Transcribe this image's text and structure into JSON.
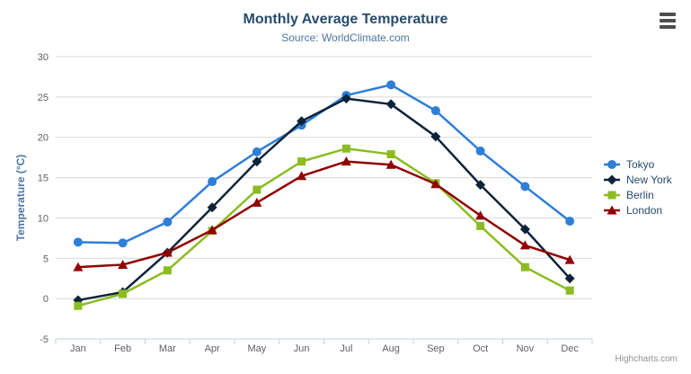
{
  "chart_data": {
    "type": "line",
    "title": "Monthly Average Temperature",
    "subtitle": "Source: WorldClimate.com",
    "xlabel": "",
    "ylabel": "Temperature (°C)",
    "ylim": [
      -5,
      30
    ],
    "y_tick_interval": 5,
    "grid": true,
    "legend_position": "right",
    "categories": [
      "Jan",
      "Feb",
      "Mar",
      "Apr",
      "May",
      "Jun",
      "Jul",
      "Aug",
      "Sep",
      "Oct",
      "Nov",
      "Dec"
    ],
    "series": [
      {
        "name": "Tokyo",
        "color": "#2f7ed8",
        "marker": "circle",
        "values": [
          7.0,
          6.9,
          9.5,
          14.5,
          18.2,
          21.5,
          25.2,
          26.5,
          23.3,
          18.3,
          13.9,
          9.6
        ]
      },
      {
        "name": "New York",
        "color": "#0d233a",
        "marker": "diamond",
        "values": [
          -0.2,
          0.8,
          5.7,
          11.3,
          17.0,
          22.0,
          24.8,
          24.1,
          20.1,
          14.1,
          8.6,
          2.5
        ]
      },
      {
        "name": "Berlin",
        "color": "#8bbc21",
        "marker": "square",
        "values": [
          -0.9,
          0.6,
          3.5,
          8.4,
          13.5,
          17.0,
          18.6,
          17.9,
          14.3,
          9.0,
          3.9,
          1.0
        ]
      },
      {
        "name": "London",
        "color": "#910000",
        "marker": "triangle",
        "values": [
          3.9,
          4.2,
          5.7,
          8.5,
          11.9,
          15.2,
          17.0,
          16.6,
          14.2,
          10.3,
          6.6,
          4.8
        ]
      }
    ]
  },
  "credits": "Highcharts.com",
  "colors": {
    "title": "#274b6d",
    "subtitle": "#4d759e",
    "axis_title": "#4d759e",
    "axis_label": "#606060",
    "grid": "#d8d8d8",
    "axis_line": "#c0d0e0",
    "legend_text": "#274b6d",
    "background": "#ffffff"
  }
}
